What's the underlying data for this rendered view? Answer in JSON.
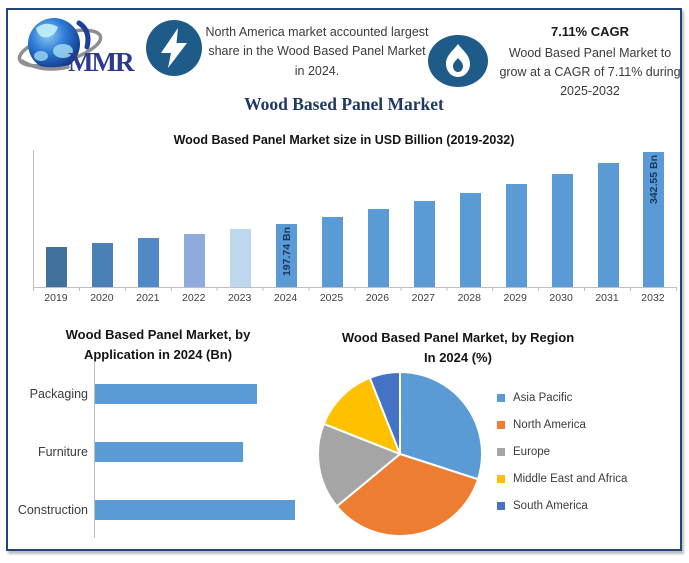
{
  "header": {
    "logo_text": "MMR",
    "left_note": {
      "text": "North America market accounted largest share in the Wood Based Panel Market in 2024."
    },
    "right_note": {
      "title": "7.11% CAGR",
      "text": "Wood Based Panel Market to grow at a CAGR of 7.11% during 2025-2032"
    }
  },
  "main_title": "Wood Based Panel Market",
  "colors": {
    "frame_border": "#24457c",
    "title_navy": "#1f3864",
    "bar_blue": "#5b9bd5",
    "badge_navy": "#1f5b88",
    "axis_gray": "#bfbfbf",
    "bar_value_label": "#17375e"
  },
  "icons": [
    "mmr-globe-logo",
    "lightning-bolt-icon",
    "flame-icon"
  ],
  "chart_data": [
    {
      "type": "bar",
      "title": "Wood Based Panel Market size in USD Billion (2019-2032)",
      "categories": [
        "2019",
        "2020",
        "2021",
        "2022",
        "2023",
        "2024",
        "2025",
        "2026",
        "2027",
        "2028",
        "2029",
        "2030",
        "2031",
        "2032"
      ],
      "values": [
        151.3,
        159.62,
        168.4,
        177.66,
        187.43,
        197.74,
        211.8,
        226.86,
        242.99,
        260.27,
        278.77,
        298.6,
        319.83,
        342.55
      ],
      "value_labels": [
        "",
        "",
        "",
        "",
        "",
        "197.74 Bn",
        "",
        "",
        "",
        "",
        "",
        "",
        "",
        "342.55 Bn"
      ],
      "bar_colors": [
        "#41719c",
        "#4a80b6",
        "#5089c6",
        "#8faadc",
        "#bdd7ee",
        "#5b9bd5",
        "#5b9bd5",
        "#5b9bd5",
        "#5b9bd5",
        "#5b9bd5",
        "#5b9bd5",
        "#5b9bd5",
        "#5b9bd5",
        "#5b9bd5"
      ],
      "ylabel": "USD Billion",
      "ylim": [
        0,
        360
      ],
      "grid": false,
      "legend": false
    },
    {
      "type": "bar",
      "orientation": "horizontal",
      "title": "Wood Based Panel Market, by Application in 2024 (Bn)",
      "title_lines": [
        "Wood Based Panel Market, by",
        "Application in 2024 (Bn)"
      ],
      "categories": [
        "Packaging",
        "Furniture",
        "Construction"
      ],
      "values_relative": [
        0.81,
        0.74,
        1.0
      ],
      "bar_color": "#5b9bd5",
      "grid": false,
      "legend": false
    },
    {
      "type": "pie",
      "title": "Wood Based Panel Market, by Region In 2024 (%)",
      "title_lines": [
        "Wood Based Panel Market, by Region",
        "In 2024 (%)"
      ],
      "labels": [
        "Asia Pacific",
        "North America",
        "Europe",
        "Middle East and Africa",
        "South America"
      ],
      "values_pct": [
        30,
        34,
        17,
        13,
        6
      ],
      "colors": [
        "#5b9bd5",
        "#ed7d31",
        "#a5a5a5",
        "#ffc000",
        "#4472c4"
      ],
      "start_angle_deg": 0,
      "direction": "clockwise",
      "legend_position": "right"
    }
  ]
}
